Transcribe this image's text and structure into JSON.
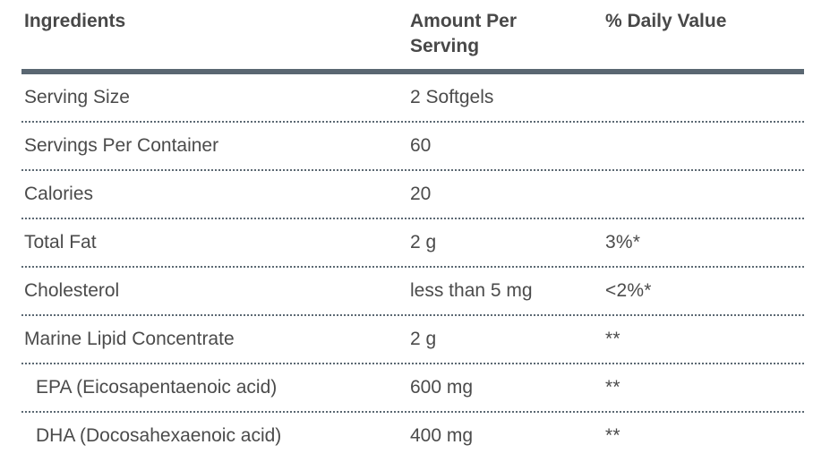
{
  "table": {
    "header": {
      "ingredients_label": "Ingredients",
      "amount_label": "Amount Per Serving",
      "daily_value_label": "% Daily Value"
    },
    "rows": [
      {
        "ingredient": "Serving Size",
        "amount": "2 Softgels",
        "daily_value": ""
      },
      {
        "ingredient": "Servings Per Container",
        "amount": "60",
        "daily_value": ""
      },
      {
        "ingredient": "Calories",
        "amount": "20",
        "daily_value": ""
      },
      {
        "ingredient": "Total Fat",
        "amount": "2 g",
        "daily_value": "3%*"
      },
      {
        "ingredient": "Cholesterol",
        "amount": "less than 5 mg",
        "daily_value": "<2%*"
      },
      {
        "ingredient": "Marine Lipid Concentrate",
        "amount": "2 g",
        "daily_value": "**"
      },
      {
        "ingredient": "EPA (Eicosapentaenoic acid)",
        "amount": "600 mg",
        "daily_value": "**"
      },
      {
        "ingredient": "DHA (Docosahexaenoic acid)",
        "amount": "400 mg",
        "daily_value": "**"
      }
    ],
    "colors": {
      "header_rule": "#5a6772",
      "row_separator": "#5c6973",
      "text": "#4b4b4b"
    }
  }
}
